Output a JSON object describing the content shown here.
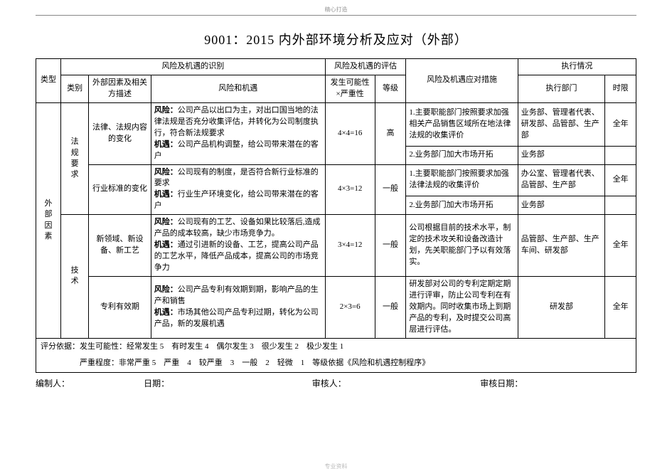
{
  "meta": {
    "header_mark": "精心打造",
    "footer_mark": "专业资料"
  },
  "title": "9001：2015 内外部环境分析及应对（外部）",
  "headers": {
    "type": "类型",
    "risk_ident": "风险及机遇的识别",
    "risk_eval": "风险及机遇的评估",
    "measures": "风险及机遇应对措施",
    "exec": "执行情况",
    "cat": "类别",
    "factor": "外部因素及相关方描述",
    "risk_opp": "风险和机遇",
    "prob": "发生可能性×严重性",
    "level": "等级",
    "dept": "执行部门",
    "time": "时限"
  },
  "labels": {
    "risk": "风险：",
    "opp": "机遇："
  },
  "type_label": "外部因素",
  "cats": {
    "fagui": "法规要求",
    "jishu": "技术"
  },
  "rows": [
    {
      "factor": "法律、法规内容的变化",
      "risk_text": "公司产品以出口为主，对出口国当地的法律法规是否充分收集评估，并转化为公司制度执行，符合新法规要求",
      "opp_text": "公司产品机构调整，给公司带来潜在的客户",
      "prob": "4×4=16",
      "level": "高",
      "measures": [
        {
          "text": "1.主要职能部门按照要求加强相关产品销售区域所在地法律法规的收集评价",
          "dept": "业务部、管理者代表、研发部、品管部、生产部",
          "time": "全年"
        },
        {
          "text": "2.业务部门加大市场开拓",
          "dept": "业务部",
          "time": ""
        }
      ]
    },
    {
      "factor": "行业标准的变化",
      "risk_text": "公司现有的制度，是否符合新行业标准的要求",
      "opp_text": "行业生产环境变化，给公司带来潜在的客户",
      "prob": "4×3=12",
      "level": "一般",
      "measures": [
        {
          "text": "1.主要职能部门按照要求加强法律法规的收集评价",
          "dept": "办公室、管理者代表、品管部、生产部",
          "time": "全年"
        },
        {
          "text": "2.业务部门加大市场开拓",
          "dept": "业务部",
          "time": ""
        }
      ]
    },
    {
      "factor": "新领域、新设备、新工艺",
      "risk_text": "公司现有的工艺、设备如果比较落后,造成产品的成本较高，缺少市场竞争力。",
      "opp_text": "通过引进新的设备、工艺，提高公司产品的工艺水平，降低产品成本，提高公司的市场竞争力",
      "prob": "3×4=12",
      "level": "一般",
      "measures": [
        {
          "text": "公司根据目前的技术水平，制定的技术攻关和设备改造计划，先关职能部门予以有效落实。",
          "dept": "品管部、生产部、生产车间、研发部",
          "time": "全年"
        }
      ]
    },
    {
      "factor": "专利有效期",
      "risk_text": "公司产品专利有效期到期，影响产品的生产和销售",
      "opp_text": "市场其他公司产品专利过期，转化为公司产品，新的发展机遇",
      "prob": "2×3=6",
      "level": "一般",
      "measures": [
        {
          "text": "研发部对公司的专利定期定期进行评审，防止公司专利在有效期内。同时收集市场上到期产品的专利，及时提交公司高层进行评估。",
          "dept": "研发部",
          "time": "全年"
        }
      ]
    }
  ],
  "score": {
    "line1": "评分依据：发生可能性：经常发生 5　有时发生 4　偶尔发生 3　很少发生 2　极少发生 1",
    "line2": "　　　　　严重程度：非常严重 5　严重　4　较严重　3　一般　2　轻微　1　等级依据《风险和机遇控制程序》"
  },
  "footer": {
    "author": "编制人：",
    "date": "日期：",
    "reviewer": "审核人：",
    "review_date": "审核日期："
  }
}
